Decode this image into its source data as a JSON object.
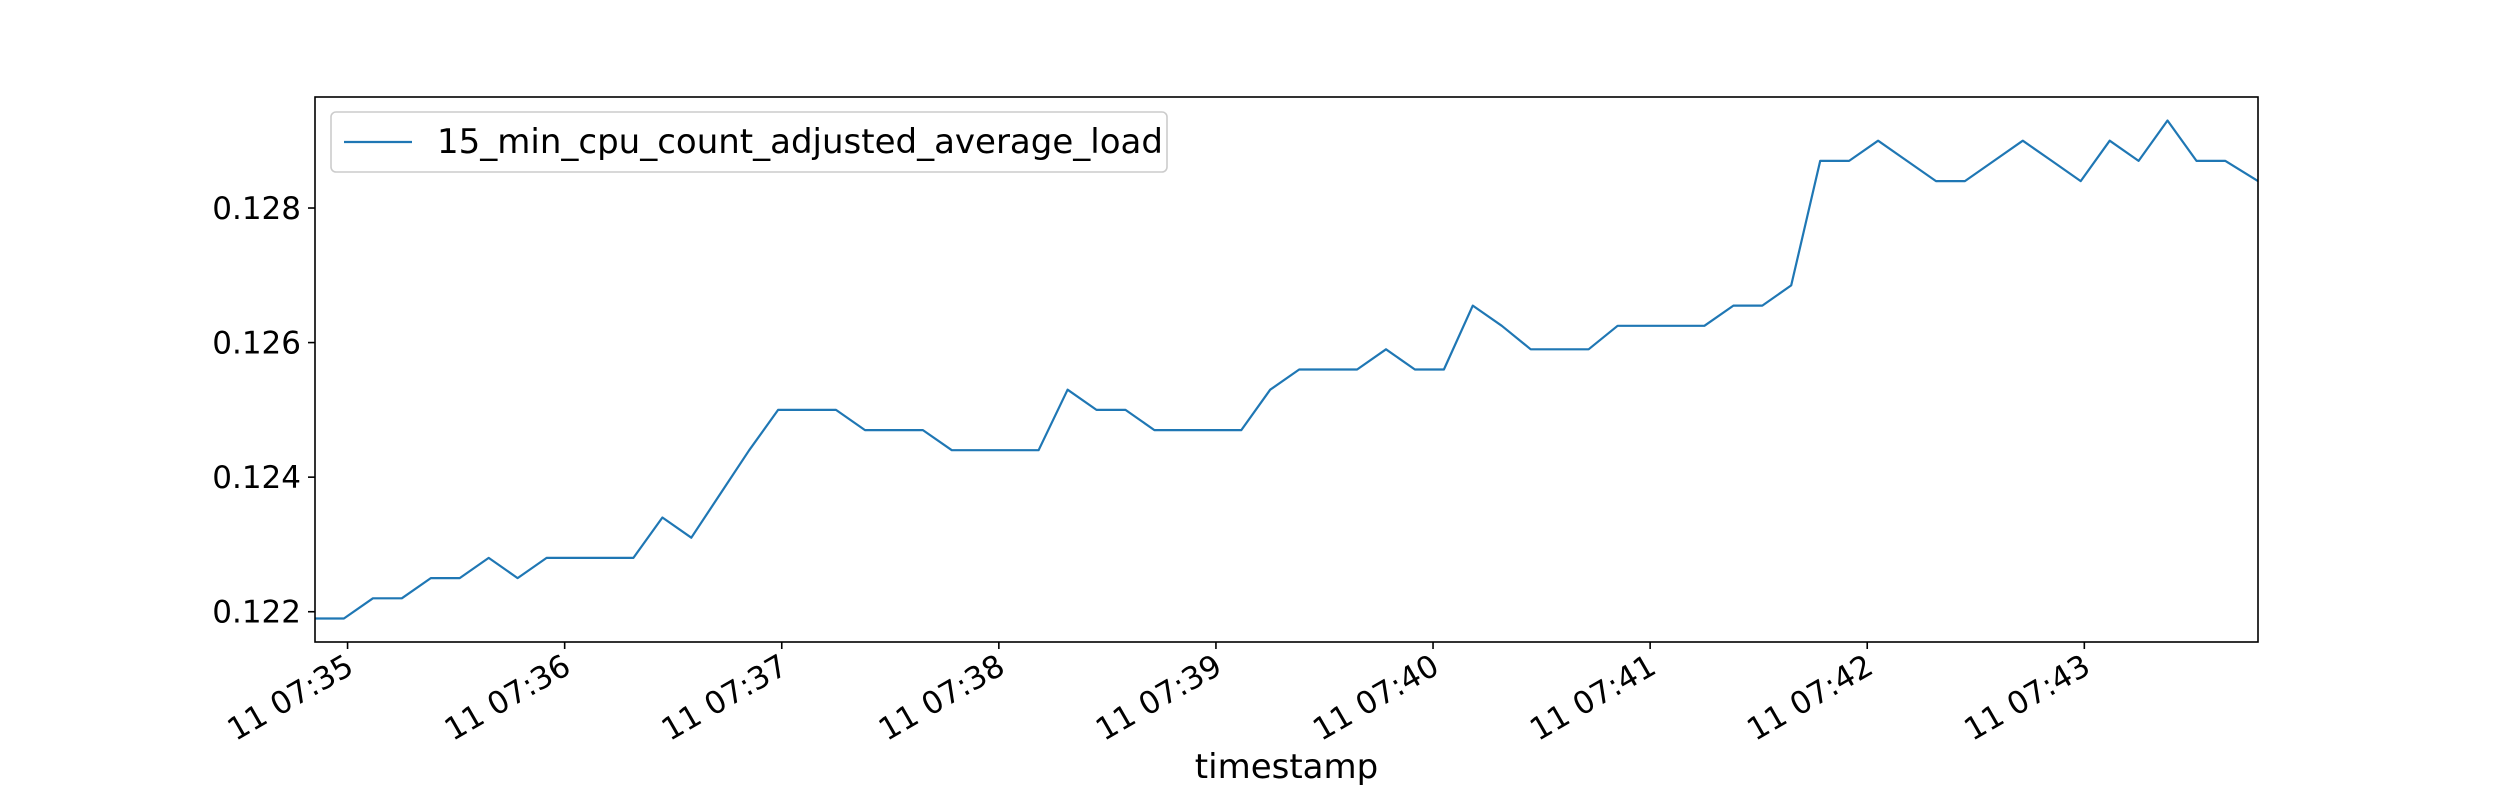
{
  "chart_data": {
    "type": "line",
    "xlabel": "timestamp",
    "ylabel": "",
    "x_unit": "time (hh:mm:ss)",
    "xlim": [
      "07:34:51",
      "07:43:48"
    ],
    "ylim": [
      0.12155,
      0.12965
    ],
    "x_ticks": [
      {
        "t": "07:35:00",
        "label": "11 07:35"
      },
      {
        "t": "07:36:00",
        "label": "11 07:36"
      },
      {
        "t": "07:37:00",
        "label": "11 07:37"
      },
      {
        "t": "07:38:00",
        "label": "11 07:38"
      },
      {
        "t": "07:39:00",
        "label": "11 07:39"
      },
      {
        "t": "07:40:00",
        "label": "11 07:40"
      },
      {
        "t": "07:41:00",
        "label": "11 07:41"
      },
      {
        "t": "07:42:00",
        "label": "11 07:42"
      },
      {
        "t": "07:43:00",
        "label": "11 07:43"
      }
    ],
    "y_ticks": [
      {
        "v": 0.122,
        "label": "0.122"
      },
      {
        "v": 0.124,
        "label": "0.124"
      },
      {
        "v": 0.126,
        "label": "0.126"
      },
      {
        "v": 0.128,
        "label": "0.128"
      }
    ],
    "grid": false,
    "legend_position": "top-left",
    "series": [
      {
        "name": "15_min_cpu_count_adjusted_average_load",
        "color": "#1f77b4",
        "points": [
          [
            "07:34:51",
            0.1219
          ],
          [
            "07:34:59",
            0.1219
          ],
          [
            "07:35:07",
            0.1222
          ],
          [
            "07:35:15",
            0.1222
          ],
          [
            "07:35:23",
            0.1225
          ],
          [
            "07:35:31",
            0.1225
          ],
          [
            "07:35:39",
            0.1228
          ],
          [
            "07:35:47",
            0.1225
          ],
          [
            "07:35:55",
            0.1228
          ],
          [
            "07:36:03",
            0.1228
          ],
          [
            "07:36:11",
            0.1228
          ],
          [
            "07:36:19",
            0.1228
          ],
          [
            "07:36:27",
            0.1234
          ],
          [
            "07:36:35",
            0.1231
          ],
          [
            "07:36:43",
            0.12375
          ],
          [
            "07:36:51",
            0.1244
          ],
          [
            "07:36:59",
            0.125
          ],
          [
            "07:37:07",
            0.125
          ],
          [
            "07:37:15",
            0.125
          ],
          [
            "07:37:23",
            0.1247
          ],
          [
            "07:37:31",
            0.1247
          ],
          [
            "07:37:39",
            0.1247
          ],
          [
            "07:37:47",
            0.1244
          ],
          [
            "07:37:55",
            0.1244
          ],
          [
            "07:38:03",
            0.1244
          ],
          [
            "07:38:11",
            0.1244
          ],
          [
            "07:38:19",
            0.1253
          ],
          [
            "07:38:27",
            0.125
          ],
          [
            "07:38:35",
            0.125
          ],
          [
            "07:38:43",
            0.1247
          ],
          [
            "07:38:51",
            0.1247
          ],
          [
            "07:38:59",
            0.1247
          ],
          [
            "07:39:07",
            0.1247
          ],
          [
            "07:39:15",
            0.1253
          ],
          [
            "07:39:23",
            0.1256
          ],
          [
            "07:39:31",
            0.1256
          ],
          [
            "07:39:39",
            0.1256
          ],
          [
            "07:39:47",
            0.1259
          ],
          [
            "07:39:55",
            0.1256
          ],
          [
            "07:40:03",
            0.1256
          ],
          [
            "07:40:11",
            0.12655
          ],
          [
            "07:40:19",
            0.12625
          ],
          [
            "07:40:27",
            0.1259
          ],
          [
            "07:40:35",
            0.1259
          ],
          [
            "07:40:43",
            0.1259
          ],
          [
            "07:40:51",
            0.12625
          ],
          [
            "07:40:59",
            0.12625
          ],
          [
            "07:41:07",
            0.12625
          ],
          [
            "07:41:15",
            0.12625
          ],
          [
            "07:41:23",
            0.12655
          ],
          [
            "07:41:31",
            0.12655
          ],
          [
            "07:41:39",
            0.12685
          ],
          [
            "07:41:47",
            0.1287
          ],
          [
            "07:41:55",
            0.1287
          ],
          [
            "07:42:03",
            0.129
          ],
          [
            "07:42:11",
            0.1287
          ],
          [
            "07:42:19",
            0.1284
          ],
          [
            "07:42:27",
            0.1284
          ],
          [
            "07:42:35",
            0.1287
          ],
          [
            "07:42:43",
            0.129
          ],
          [
            "07:42:51",
            0.1287
          ],
          [
            "07:42:59",
            0.1284
          ],
          [
            "07:43:07",
            0.129
          ],
          [
            "07:43:15",
            0.1287
          ],
          [
            "07:43:23",
            0.1293
          ],
          [
            "07:43:31",
            0.1287
          ],
          [
            "07:43:39",
            0.1287
          ],
          [
            "07:43:48",
            0.1284
          ]
        ]
      }
    ]
  }
}
